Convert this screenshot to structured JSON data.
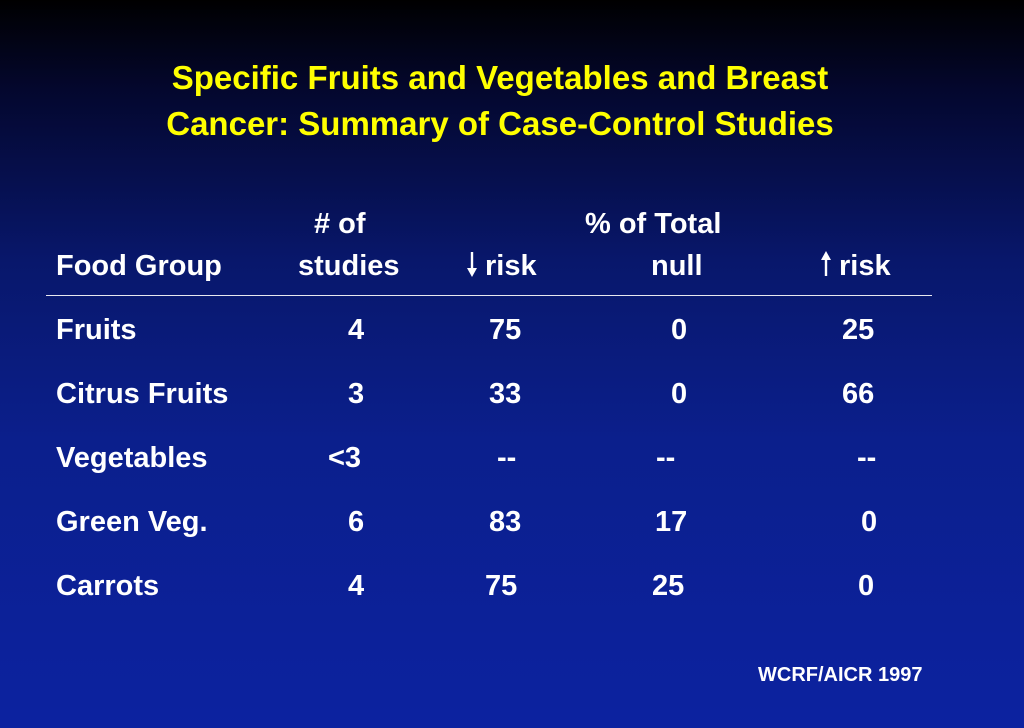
{
  "title": {
    "line1": "Specific Fruits and Vegetables and Breast",
    "line2": "Cancer: Summary of Case-Control Studies"
  },
  "header": {
    "food_group": "Food Group",
    "num_line1": "# of",
    "num_line2": "studies",
    "pct_line1": "% of Total",
    "down_risk": "risk",
    "null": "null",
    "up_risk": "risk"
  },
  "rows": [
    {
      "food": "Fruits",
      "studies": "4",
      "down": "75",
      "null": "0",
      "up": "25"
    },
    {
      "food": "Citrus Fruits",
      "studies": "3",
      "down": "33",
      "null": "0",
      "up": "66"
    },
    {
      "food": "Vegetables",
      "studies": "<3",
      "down": "--",
      "null": "--",
      "up": "--"
    },
    {
      "food": "Green Veg.",
      "studies": "6",
      "down": "83",
      "null": "17",
      "up": "0"
    },
    {
      "food": "Carrots",
      "studies": "4",
      "down": "75",
      "null": "25",
      "up": "0"
    }
  ],
  "source": "WCRF/AICR 1997",
  "colors": {
    "title": "#ffff00",
    "text": "#ffffff",
    "background": "#0b1f8c"
  }
}
